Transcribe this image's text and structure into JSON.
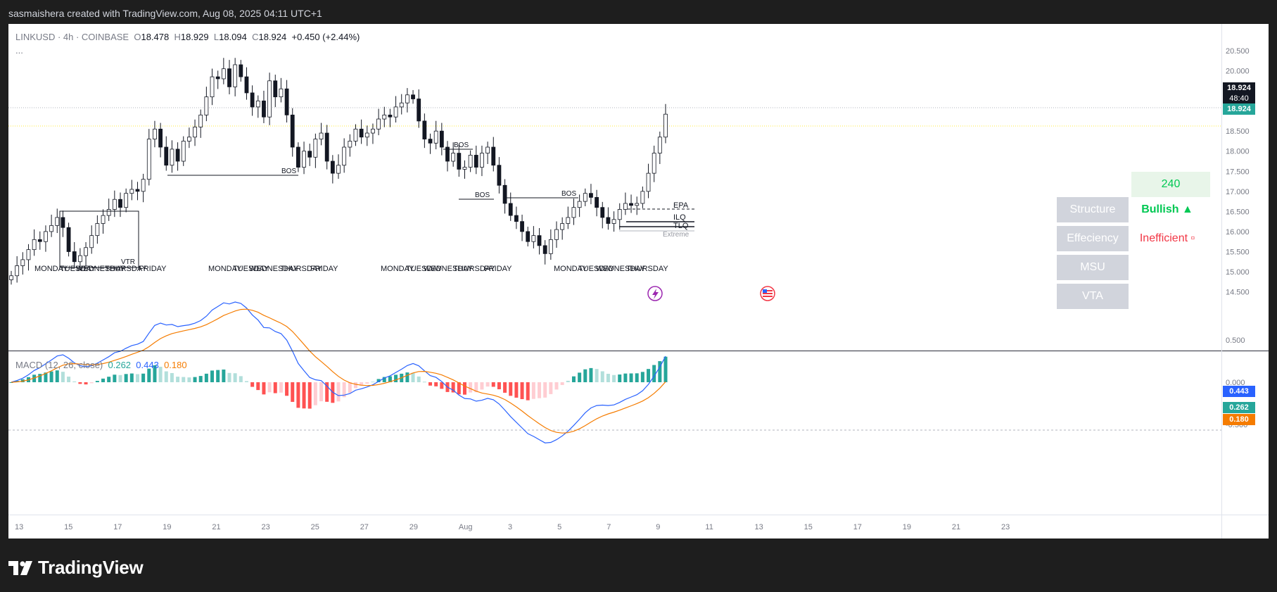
{
  "header": {
    "caption": "sasmaishera created with TradingView.com, Aug 08, 2025 04:11 UTC+1"
  },
  "legend": {
    "symbol": "LINKUSD · 4h · COINBASE",
    "o_label": "O",
    "o": "18.478",
    "h_label": "H",
    "h": "18.929",
    "l_label": "L",
    "l": "18.094",
    "c_label": "C",
    "c": "18.924",
    "change": "+0.450 (+2.44%)",
    "more": "..."
  },
  "macd_legend": {
    "title": "MACD (12, 26, close)",
    "hist": "0.262",
    "macd": "0.443",
    "signal": "0.180"
  },
  "price_axis": {
    "ticks": [
      "20.500",
      "20.000",
      "19.500",
      "19.000",
      "18.500",
      "18.000",
      "17.500",
      "17.000",
      "16.500",
      "16.000",
      "15.500",
      "15.000",
      "14.500"
    ]
  },
  "macd_axis": {
    "ticks": [
      "0.500",
      "0.000",
      "-0.500"
    ]
  },
  "price_tags": {
    "last": "18.924",
    "countdown": "48:40",
    "close": "18.924"
  },
  "macd_tags": {
    "macd": "0.443",
    "hist": "0.262",
    "signal": "0.180"
  },
  "time_axis": {
    "ticks": [
      "13",
      "15",
      "17",
      "19",
      "21",
      "23",
      "25",
      "27",
      "29",
      "Aug",
      "3",
      "5",
      "7",
      "9",
      "11",
      "13",
      "15",
      "17",
      "19",
      "21",
      "23"
    ]
  },
  "annotations": {
    "bos": [
      "BOS",
      "BOS",
      "BOS",
      "BOS"
    ],
    "vtr": "VTR",
    "levels": [
      "EPA",
      "ILQ",
      "TLQ",
      "Extreme"
    ],
    "weekdays": [
      [
        "MONDAY",
        "TUESDAY",
        "WEDNESDAY",
        "THURSDAY",
        "FRIDAY"
      ],
      [
        "MONDAY",
        "TUESDAY",
        "WEDNESDAY",
        "THURSDAY",
        "FRIDAY"
      ],
      [
        "MONDAY",
        "TUESDAY",
        "WEDNESDAY",
        "THURSDAY",
        "FRIDAY"
      ],
      [
        "MONDAY",
        "TUESDAY",
        "WEDNESDAY",
        "THURSDAY"
      ]
    ]
  },
  "info_table": {
    "timeframe": "240",
    "rows": [
      {
        "label": "Structure",
        "value": "Bullish ▲",
        "color": "#00c853"
      },
      {
        "label": "Effeciency",
        "value": "Inefficient ▫",
        "color": "#f23645"
      },
      {
        "label": "MSU",
        "value": "",
        "color": ""
      },
      {
        "label": "VTA",
        "value": "",
        "color": ""
      }
    ]
  },
  "colors": {
    "up": "#ffffff",
    "down": "#131722",
    "macd": "#2962ff",
    "signal": "#f57c00",
    "hist_up_strong": "#26a69a",
    "hist_up_weak": "#b2dfdb",
    "hist_down_strong": "#ff5252",
    "hist_down_weak": "#ffcdd2"
  },
  "footer": {
    "brand": "TradingView"
  },
  "chart_data": {
    "type": "candlestick",
    "symbol": "LINKUSD",
    "interval": "4h",
    "ylim": [
      14.3,
      20.85
    ],
    "x_labels": [
      "13",
      "15",
      "17",
      "19",
      "21",
      "23",
      "25",
      "27",
      "29",
      "Aug",
      "3",
      "5",
      "7"
    ],
    "close": [
      14.9,
      15.15,
      15.3,
      15.55,
      15.8,
      15.75,
      16.0,
      16.15,
      16.35,
      16.1,
      15.5,
      15.25,
      15.4,
      15.6,
      15.9,
      16.2,
      16.4,
      16.55,
      16.8,
      16.6,
      16.95,
      17.05,
      17.0,
      17.3,
      18.3,
      18.55,
      18.1,
      17.65,
      18.05,
      17.75,
      18.25,
      18.35,
      18.6,
      18.9,
      19.35,
      19.85,
      19.8,
      20.05,
      19.6,
      20.15,
      19.85,
      19.45,
      19.1,
      19.25,
      18.85,
      19.75,
      19.35,
      19.55,
      18.9,
      18.1,
      17.6,
      18.0,
      17.85,
      18.3,
      18.45,
      17.75,
      17.45,
      17.65,
      18.1,
      18.25,
      18.55,
      18.35,
      18.45,
      18.55,
      18.8,
      18.9,
      18.85,
      19.1,
      19.2,
      19.4,
      19.3,
      18.75,
      18.3,
      18.2,
      18.5,
      18.1,
      17.75,
      17.95,
      17.55,
      17.6,
      17.9,
      17.6,
      17.95,
      18.1,
      17.65,
      17.15,
      16.7,
      16.4,
      16.25,
      16.0,
      15.75,
      15.9,
      15.65,
      15.45,
      15.8,
      16.05,
      16.2,
      16.35,
      16.6,
      16.75,
      16.95,
      16.85,
      16.6,
      16.35,
      16.2,
      16.3,
      16.55,
      16.7,
      16.65,
      16.7,
      17.0,
      17.45,
      17.95,
      18.35,
      18.92
    ]
  }
}
